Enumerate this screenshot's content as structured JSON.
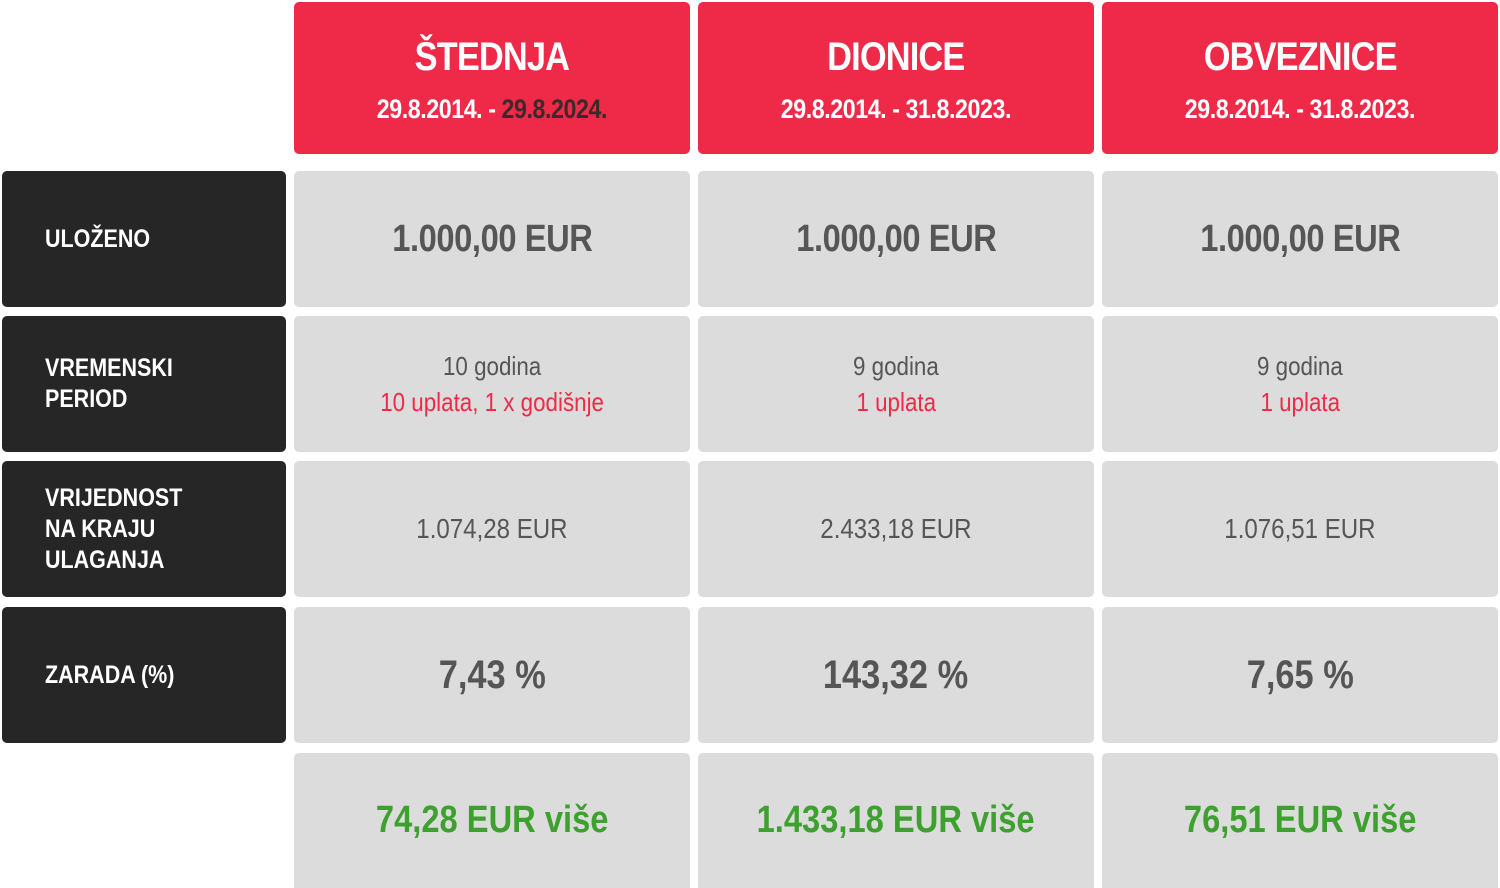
{
  "columns": [
    {
      "name": "ŠTEDNJA",
      "date_start": "29.8.2014.",
      "date_sep": " - ",
      "date_end": "29.8.2024."
    },
    {
      "name": "DIONICE",
      "date_start": "29.8.2014.",
      "date_sep": " - ",
      "date_end": "31.8.2023."
    },
    {
      "name": "OBVEZNICE",
      "date_start": "29.8.2014.",
      "date_sep": " - ",
      "date_end": "31.8.2023."
    }
  ],
  "rows": {
    "ulozeno": {
      "label": "ULOŽENO",
      "values": [
        "1.000,00 EUR",
        "1.000,00 EUR",
        "1.000,00 EUR"
      ]
    },
    "period": {
      "label": "VREMENSKI\nPERIOD",
      "values": [
        {
          "years": "10 godina",
          "payments": "10 uplata, 1 x godišnje"
        },
        {
          "years": "9 godina",
          "payments": "1 uplata"
        },
        {
          "years": "9 godina",
          "payments": "1 uplata"
        }
      ]
    },
    "vrijednost": {
      "label": "VRIJEDNOST\nNA KRAJU\nULAGANJA",
      "values": [
        "1.074,28 EUR",
        "2.433,18 EUR",
        "1.076,51 EUR"
      ]
    },
    "zarada": {
      "label": "ZARADA (%)",
      "values": [
        "7,43 %",
        "143,32 %",
        "7,65 %"
      ]
    },
    "vise": {
      "values": [
        "74,28 EUR više",
        "1.433,18 EUR više",
        "76,51 EUR više"
      ]
    }
  },
  "colors": {
    "header_red": "#ee2a48",
    "label_dark": "#262626",
    "value_gray": "#dcdcdc",
    "text_gray": "#555555",
    "payments_red": "#ee2a48",
    "gain_green": "#3ea12f"
  }
}
